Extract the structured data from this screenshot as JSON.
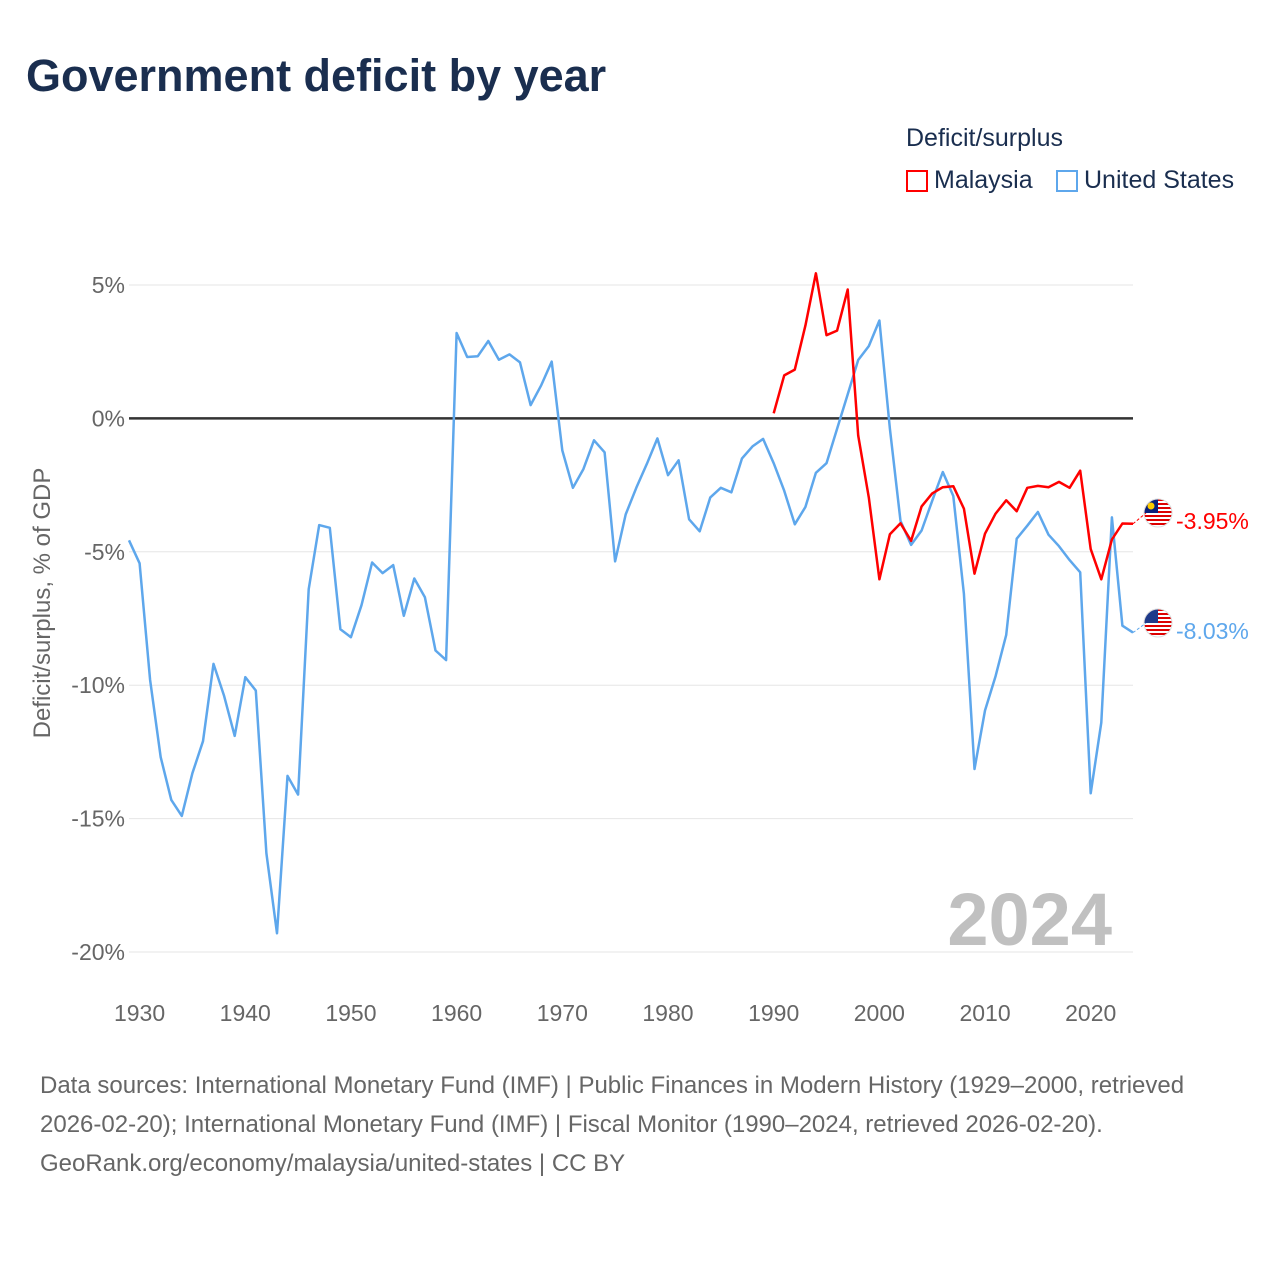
{
  "chart_data": {
    "type": "line",
    "title": "Government deficit by year",
    "ylabel": "Deficit/surplus, % of GDP",
    "xlabel": "",
    "xlim": [
      1929,
      2024
    ],
    "ylim": [
      -21,
      5.8
    ],
    "x_ticks": [
      1930,
      1940,
      1950,
      1960,
      1970,
      1980,
      1990,
      2000,
      2010,
      2020
    ],
    "y_ticks": [
      5,
      0,
      -5,
      -10,
      -15,
      -20
    ],
    "y_tick_labels": [
      "5%",
      "0%",
      "-5%",
      "-10%",
      "-15%",
      "-20%"
    ],
    "grid": true,
    "legend_title": "Deficit/surplus",
    "legend_position": "top-right",
    "year_watermark": "2024",
    "series": [
      {
        "name": "Malaysia",
        "color": "#ff0000",
        "start_year": 1990,
        "end_label": "-3.95%",
        "values": [
          0.19,
          1.61,
          1.83,
          3.48,
          5.44,
          3.12,
          3.29,
          4.83,
          -0.64,
          -2.96,
          -6.03,
          -4.34,
          -3.93,
          -4.59,
          -3.3,
          -2.81,
          -2.58,
          -2.54,
          -3.38,
          -5.82,
          -4.32,
          -3.57,
          -3.07,
          -3.48,
          -2.6,
          -2.53,
          -2.58,
          -2.38,
          -2.6,
          -1.96,
          -4.9,
          -6.03,
          -4.54,
          -3.94,
          -3.95
        ]
      },
      {
        "name": "United States",
        "color": "#5ea7ec",
        "start_year": 1929,
        "end_label": "-8.03%",
        "values": [
          -4.57,
          -5.43,
          -9.8,
          -12.7,
          -14.3,
          -14.9,
          -13.3,
          -12.1,
          -9.2,
          -10.4,
          -11.9,
          -9.7,
          -10.2,
          -16.3,
          -19.3,
          -13.4,
          -14.1,
          -6.4,
          -4.0,
          -4.1,
          -7.9,
          -8.2,
          -7.0,
          -5.4,
          -5.8,
          -5.5,
          -7.4,
          -6.0,
          -6.7,
          -8.7,
          -9.06,
          3.2,
          2.3,
          2.33,
          2.9,
          2.2,
          2.4,
          2.1,
          0.5,
          1.24,
          2.13,
          -1.2,
          -2.6,
          -1.9,
          -0.82,
          -1.27,
          -5.36,
          -3.6,
          -2.6,
          -1.7,
          -0.75,
          -2.13,
          -1.57,
          -3.78,
          -4.23,
          -2.96,
          -2.6,
          -2.77,
          -1.5,
          -1.05,
          -0.77,
          -1.68,
          -2.71,
          -3.97,
          -3.32,
          -2.04,
          -1.68,
          -0.39,
          0.9,
          2.19,
          2.71,
          3.67,
          -0.39,
          -3.84,
          -4.74,
          -4.2,
          -3.09,
          -2.01,
          -2.91,
          -6.57,
          -13.14,
          -10.95,
          -9.66,
          -8.12,
          -4.51,
          -4.02,
          -3.51,
          -4.36,
          -4.79,
          -5.31,
          -5.77,
          -14.05,
          -11.4,
          -3.71,
          -7.77,
          -8.03
        ]
      }
    ]
  },
  "footer": {
    "sources": "Data sources: International Monetary Fund (IMF) | Public Finances in Modern History (1929–2000, retrieved 2026-02-20); International Monetary Fund (IMF) | Fiscal Monitor (1990–2024, retrieved 2026-02-20).",
    "credit": "GeoRank.org/economy/malaysia/united-states | CC BY"
  },
  "icons": {
    "malaysia_flag": "malaysia-flag-icon",
    "us_flag": "us-flag-icon"
  }
}
